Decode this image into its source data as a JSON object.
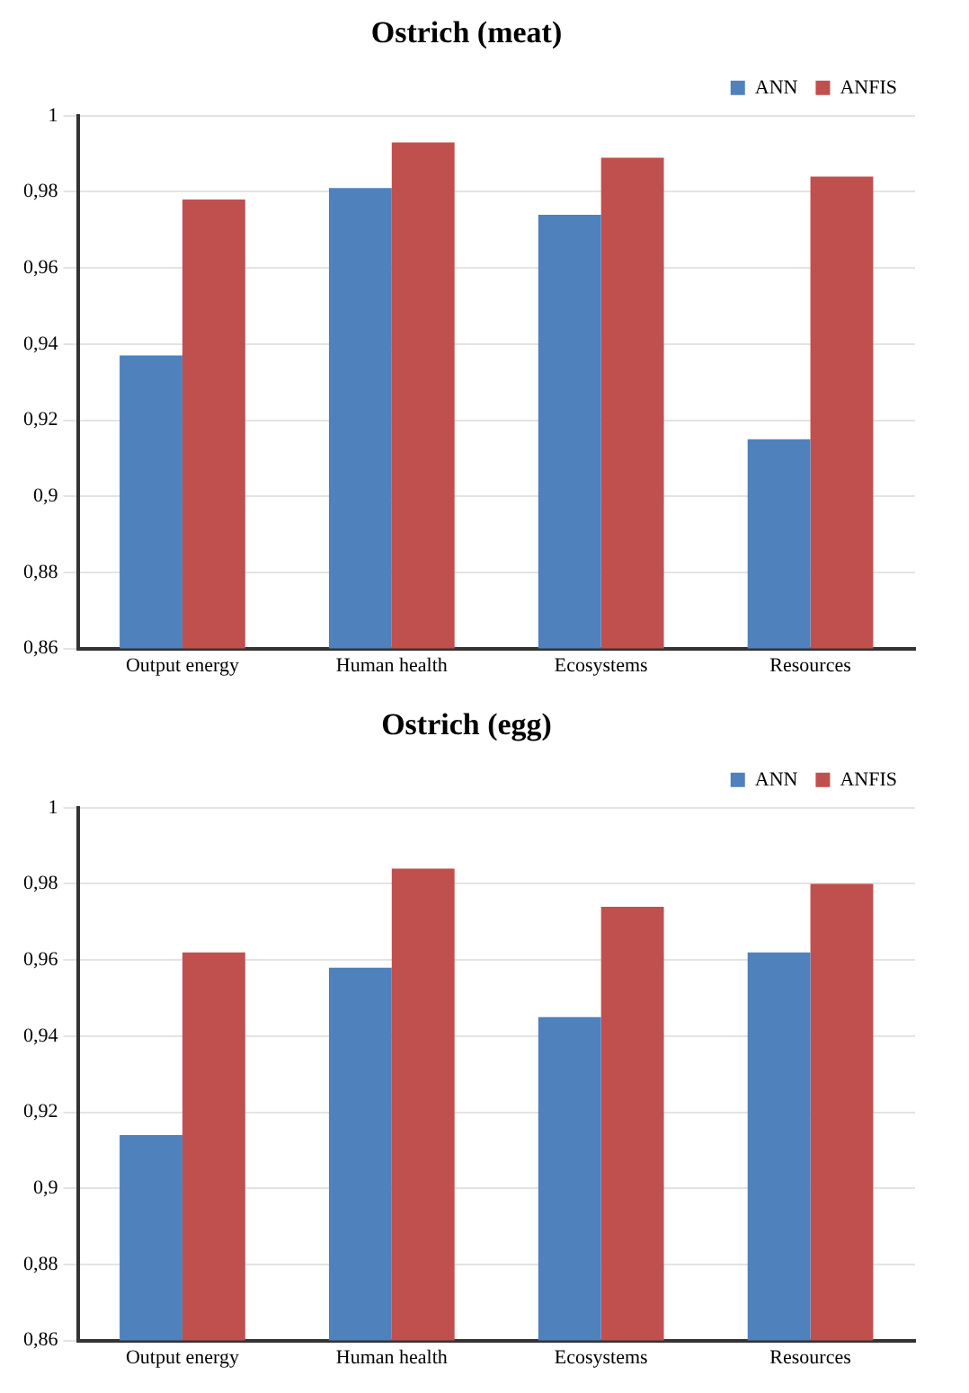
{
  "chart_data": [
    {
      "type": "bar",
      "title": "Ostrich (meat)",
      "categories": [
        "Output energy",
        "Human health",
        "Ecosystems",
        "Resources"
      ],
      "series": [
        {
          "name": "ANN",
          "color": "#4f81bd",
          "values": [
            0.937,
            0.981,
            0.974,
            0.915
          ]
        },
        {
          "name": "ANFIS",
          "color": "#c0504d",
          "values": [
            0.978,
            0.993,
            0.989,
            0.984
          ]
        }
      ],
      "ylim": [
        0.86,
        1
      ],
      "yticks": [
        {
          "value": 0.86,
          "label": "0,86"
        },
        {
          "value": 0.88,
          "label": "0,88"
        },
        {
          "value": 0.9,
          "label": "0,9"
        },
        {
          "value": 0.92,
          "label": "0,92"
        },
        {
          "value": 0.94,
          "label": "0,94"
        },
        {
          "value": 0.96,
          "label": "0,96"
        },
        {
          "value": 0.98,
          "label": "0,98"
        },
        {
          "value": 1,
          "label": "1"
        }
      ],
      "grid": "y",
      "legend": "top right"
    },
    {
      "type": "bar",
      "title": "Ostrich (egg)",
      "categories": [
        "Output energy",
        "Human health",
        "Ecosystems",
        "Resources"
      ],
      "series": [
        {
          "name": "ANN",
          "color": "#4f81bd",
          "values": [
            0.914,
            0.958,
            0.945,
            0.962
          ]
        },
        {
          "name": "ANFIS",
          "color": "#c0504d",
          "values": [
            0.962,
            0.984,
            0.974,
            0.98
          ]
        }
      ],
      "ylim": [
        0.86,
        1
      ],
      "yticks": [
        {
          "value": 0.86,
          "label": "0,86"
        },
        {
          "value": 0.88,
          "label": "0,88"
        },
        {
          "value": 0.9,
          "label": "0,9"
        },
        {
          "value": 0.92,
          "label": "0,92"
        },
        {
          "value": 0.94,
          "label": "0,94"
        },
        {
          "value": 0.96,
          "label": "0,96"
        },
        {
          "value": 0.98,
          "label": "0,98"
        },
        {
          "value": 1,
          "label": "1"
        }
      ],
      "grid": "y",
      "legend": "top right"
    }
  ]
}
